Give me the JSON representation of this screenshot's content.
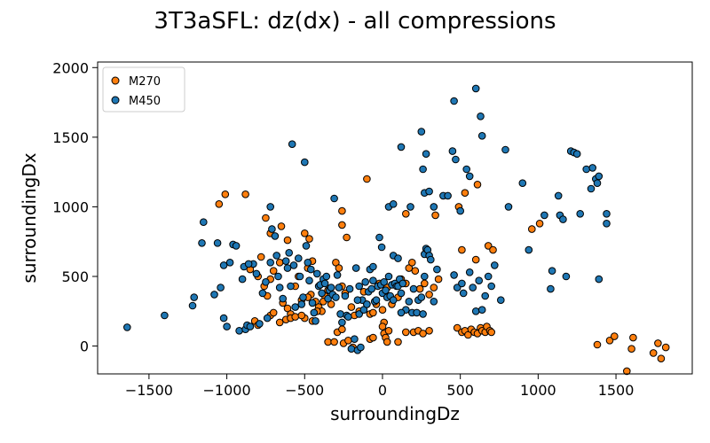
{
  "chart_data": {
    "type": "scatter",
    "title": "3T3aSFL: dz(dx) - all compressions",
    "xlabel": "surroundingDz",
    "ylabel": "surroundingDx",
    "xlim": [
      -1830,
      1990
    ],
    "ylim": [
      -200,
      2040
    ],
    "xticks": [
      -1500,
      -1000,
      -500,
      0,
      500,
      1000,
      1500
    ],
    "yticks": [
      0,
      500,
      1000,
      1500,
      2000
    ],
    "xtick_labels": [
      "−1500",
      "−1000",
      "−500",
      "0",
      "500",
      "1000",
      "1500"
    ],
    "ytick_labels": [
      "0",
      "500",
      "1000",
      "1500",
      "2000"
    ],
    "grid": false,
    "legend_position": "top-left",
    "series": [
      {
        "name": "M270",
        "color": "#ff7f0e",
        "points": [
          [
            -1050,
            1020
          ],
          [
            -1010,
            1090
          ],
          [
            -880,
            1090
          ],
          [
            -750,
            920
          ],
          [
            -720,
            810
          ],
          [
            -650,
            860
          ],
          [
            -610,
            760
          ],
          [
            -500,
            810
          ],
          [
            -470,
            770
          ],
          [
            -260,
            970
          ],
          [
            -260,
            870
          ],
          [
            -230,
            780
          ],
          [
            -100,
            1200
          ],
          [
            150,
            950
          ],
          [
            340,
            940
          ],
          [
            490,
            1000
          ],
          [
            530,
            1100
          ],
          [
            610,
            1160
          ],
          [
            -850,
            550
          ],
          [
            -800,
            500
          ],
          [
            -780,
            640
          ],
          [
            -760,
            430
          ],
          [
            -740,
            360
          ],
          [
            -720,
            480
          ],
          [
            -700,
            540
          ],
          [
            -660,
            600
          ],
          [
            -640,
            310
          ],
          [
            -610,
            270
          ],
          [
            -590,
            230
          ],
          [
            -560,
            430
          ],
          [
            -540,
            500
          ],
          [
            -520,
            330
          ],
          [
            -500,
            200
          ],
          [
            -480,
            560
          ],
          [
            -460,
            370
          ],
          [
            -450,
            610
          ],
          [
            -430,
            320
          ],
          [
            -410,
            280
          ],
          [
            -390,
            250
          ],
          [
            -370,
            360
          ],
          [
            -350,
            400
          ],
          [
            -330,
            300
          ],
          [
            -300,
            600
          ],
          [
            -280,
            560
          ],
          [
            -260,
            430
          ],
          [
            -240,
            380
          ],
          [
            -200,
            280
          ],
          [
            -180,
            220
          ],
          [
            -150,
            250
          ],
          [
            -120,
            390
          ],
          [
            -100,
            300
          ],
          [
            -80,
            230
          ],
          [
            -60,
            240
          ],
          [
            -40,
            300
          ],
          [
            -20,
            450
          ],
          [
            0,
            260
          ],
          [
            10,
            170
          ],
          [
            30,
            420
          ],
          [
            60,
            300
          ],
          [
            100,
            350
          ],
          [
            120,
            480
          ],
          [
            150,
            450
          ],
          [
            170,
            560
          ],
          [
            190,
            600
          ],
          [
            210,
            540
          ],
          [
            240,
            410
          ],
          [
            270,
            450
          ],
          [
            300,
            370
          ],
          [
            330,
            420
          ],
          [
            360,
            480
          ],
          [
            -820,
            180
          ],
          [
            -800,
            150
          ],
          [
            -720,
            220
          ],
          [
            -700,
            240
          ],
          [
            -660,
            170
          ],
          [
            -620,
            190
          ],
          [
            -590,
            200
          ],
          [
            -560,
            210
          ],
          [
            -520,
            220
          ],
          [
            -480,
            350
          ],
          [
            -450,
            180
          ],
          [
            -420,
            250
          ],
          [
            -380,
            320
          ],
          [
            -350,
            30
          ],
          [
            -310,
            30
          ],
          [
            -290,
            100
          ],
          [
            -260,
            120
          ],
          [
            -250,
            20
          ],
          [
            -220,
            40
          ],
          [
            -190,
            -10
          ],
          [
            -80,
            50
          ],
          [
            -60,
            60
          ],
          [
            0,
            140
          ],
          [
            10,
            90
          ],
          [
            20,
            60
          ],
          [
            30,
            30
          ],
          [
            40,
            110
          ],
          [
            100,
            30
          ],
          [
            150,
            100
          ],
          [
            200,
            100
          ],
          [
            230,
            110
          ],
          [
            260,
            90
          ],
          [
            300,
            110
          ],
          [
            480,
            130
          ],
          [
            510,
            100
          ],
          [
            530,
            110
          ],
          [
            550,
            80
          ],
          [
            570,
            120
          ],
          [
            590,
            100
          ],
          [
            610,
            90
          ],
          [
            630,
            130
          ],
          [
            640,
            110
          ],
          [
            660,
            100
          ],
          [
            670,
            140
          ],
          [
            690,
            110
          ],
          [
            700,
            100
          ],
          [
            510,
            690
          ],
          [
            600,
            620
          ],
          [
            680,
            720
          ],
          [
            710,
            690
          ],
          [
            1010,
            880
          ],
          [
            960,
            840
          ],
          [
            1380,
            10
          ],
          [
            1460,
            40
          ],
          [
            1490,
            70
          ],
          [
            1570,
            -180
          ],
          [
            1600,
            -20
          ],
          [
            1610,
            60
          ],
          [
            1740,
            -50
          ],
          [
            1770,
            20
          ],
          [
            1790,
            -90
          ],
          [
            1820,
            -10
          ]
        ]
      },
      {
        "name": "M450",
        "color": "#1f77b4",
        "points": [
          [
            -1640,
            135
          ],
          [
            -1400,
            220
          ],
          [
            -1220,
            290
          ],
          [
            -1210,
            350
          ],
          [
            -1150,
            890
          ],
          [
            -1160,
            740
          ],
          [
            -1080,
            370
          ],
          [
            -1040,
            420
          ],
          [
            -1020,
            200
          ],
          [
            -1000,
            140
          ],
          [
            -980,
            600
          ],
          [
            -960,
            730
          ],
          [
            -940,
            720
          ],
          [
            -920,
            110
          ],
          [
            -900,
            480
          ],
          [
            -890,
            570
          ],
          [
            -880,
            120
          ],
          [
            -870,
            150
          ],
          [
            -850,
            140
          ],
          [
            -830,
            590
          ],
          [
            -810,
            520
          ],
          [
            -790,
            160
          ],
          [
            -770,
            380
          ],
          [
            -750,
            460
          ],
          [
            -740,
            200
          ],
          [
            -720,
            600
          ],
          [
            -710,
            840
          ],
          [
            -690,
            790
          ],
          [
            -680,
            650
          ],
          [
            -670,
            500
          ],
          [
            -660,
            420
          ],
          [
            -640,
            340
          ],
          [
            -620,
            610
          ],
          [
            -610,
            560
          ],
          [
            -600,
            670
          ],
          [
            -590,
            430
          ],
          [
            -570,
            580
          ],
          [
            -560,
            280
          ],
          [
            -540,
            630
          ],
          [
            -530,
            500
          ],
          [
            -520,
            300
          ],
          [
            -510,
            350
          ],
          [
            -500,
            1320
          ],
          [
            -490,
            720
          ],
          [
            -480,
            600
          ],
          [
            -470,
            470
          ],
          [
            -460,
            550
          ],
          [
            -450,
            310
          ],
          [
            -440,
            240
          ],
          [
            -430,
            180
          ],
          [
            -420,
            520
          ],
          [
            -410,
            430
          ],
          [
            -400,
            440
          ],
          [
            -390,
            380
          ],
          [
            -380,
            480
          ],
          [
            -370,
            450
          ],
          [
            -360,
            500
          ],
          [
            -350,
            340
          ],
          [
            -340,
            400
          ],
          [
            -330,
            420
          ],
          [
            -320,
            370
          ],
          [
            -310,
            1060
          ],
          [
            -300,
            350
          ],
          [
            -290,
            510
          ],
          [
            -280,
            420
          ],
          [
            -270,
            230
          ],
          [
            -260,
            170
          ],
          [
            -240,
            360
          ],
          [
            -230,
            220
          ],
          [
            -220,
            210
          ],
          [
            -200,
            -20
          ],
          [
            -180,
            50
          ],
          [
            -170,
            560
          ],
          [
            -160,
            -30
          ],
          [
            -150,
            230
          ],
          [
            -140,
            -10
          ],
          [
            -130,
            330
          ],
          [
            -120,
            260
          ],
          [
            -110,
            460
          ],
          [
            -100,
            300
          ],
          [
            -90,
            390
          ],
          [
            -80,
            550
          ],
          [
            -70,
            410
          ],
          [
            -60,
            470
          ],
          [
            -50,
            320
          ],
          [
            -40,
            330
          ],
          [
            -30,
            430
          ],
          [
            -20,
            780
          ],
          [
            -10,
            440
          ],
          [
            0,
            380
          ],
          [
            10,
            460
          ],
          [
            20,
            400
          ],
          [
            30,
            350
          ],
          [
            40,
            500
          ],
          [
            50,
            360
          ],
          [
            60,
            440
          ],
          [
            70,
            330
          ],
          [
            80,
            450
          ],
          [
            90,
            430
          ],
          [
            100,
            430
          ],
          [
            110,
            480
          ],
          [
            120,
            380
          ],
          [
            130,
            450
          ],
          [
            150,
            260
          ],
          [
            170,
            320
          ],
          [
            190,
            240
          ],
          [
            200,
            410
          ],
          [
            220,
            240
          ],
          [
            230,
            330
          ],
          [
            250,
            350
          ],
          [
            260,
            230
          ],
          [
            270,
            660
          ],
          [
            280,
            700
          ],
          [
            290,
            690
          ],
          [
            300,
            650
          ],
          [
            310,
            620
          ],
          [
            330,
            320
          ],
          [
            350,
            550
          ],
          [
            250,
            1540
          ],
          [
            280,
            1380
          ],
          [
            260,
            1270
          ],
          [
            270,
            1100
          ],
          [
            300,
            1110
          ],
          [
            180,
            1000
          ],
          [
            330,
            1000
          ],
          [
            120,
            1430
          ],
          [
            40,
            1000
          ],
          [
            70,
            1020
          ],
          [
            -580,
            1450
          ],
          [
            -720,
            1000
          ],
          [
            -860,
            590
          ],
          [
            -1020,
            580
          ],
          [
            -1060,
            740
          ],
          [
            450,
            1400
          ],
          [
            470,
            1340
          ],
          [
            540,
            1270
          ],
          [
            460,
            1760
          ],
          [
            600,
            1850
          ],
          [
            630,
            1650
          ],
          [
            640,
            1510
          ],
          [
            390,
            1080
          ],
          [
            560,
            1220
          ],
          [
            420,
            1080
          ],
          [
            500,
            970
          ],
          [
            480,
            420
          ],
          [
            460,
            510
          ],
          [
            510,
            450
          ],
          [
            520,
            380
          ],
          [
            560,
            530
          ],
          [
            580,
            420
          ],
          [
            600,
            250
          ],
          [
            620,
            470
          ],
          [
            640,
            260
          ],
          [
            660,
            360
          ],
          [
            680,
            500
          ],
          [
            700,
            430
          ],
          [
            720,
            580
          ],
          [
            760,
            330
          ],
          [
            790,
            1410
          ],
          [
            810,
            1000
          ],
          [
            900,
            1170
          ],
          [
            940,
            690
          ],
          [
            1040,
            940
          ],
          [
            1090,
            540
          ],
          [
            1080,
            410
          ],
          [
            1130,
            1080
          ],
          [
            1140,
            940
          ],
          [
            1160,
            910
          ],
          [
            1180,
            500
          ],
          [
            1210,
            1400
          ],
          [
            1230,
            1390
          ],
          [
            1250,
            1380
          ],
          [
            1270,
            950
          ],
          [
            1310,
            1270
          ],
          [
            1340,
            1130
          ],
          [
            1350,
            1280
          ],
          [
            1370,
            1200
          ],
          [
            1390,
            1220
          ],
          [
            1380,
            1170
          ],
          [
            1390,
            480
          ],
          [
            1440,
            950
          ],
          [
            1440,
            880
          ],
          [
            120,
            240
          ],
          [
            270,
            500
          ],
          [
            -150,
            430
          ],
          [
            -210,
            410
          ],
          [
            -160,
            330
          ],
          [
            -60,
            570
          ],
          [
            -5,
            710
          ],
          [
            70,
            650
          ],
          [
            100,
            630
          ]
        ]
      }
    ]
  }
}
